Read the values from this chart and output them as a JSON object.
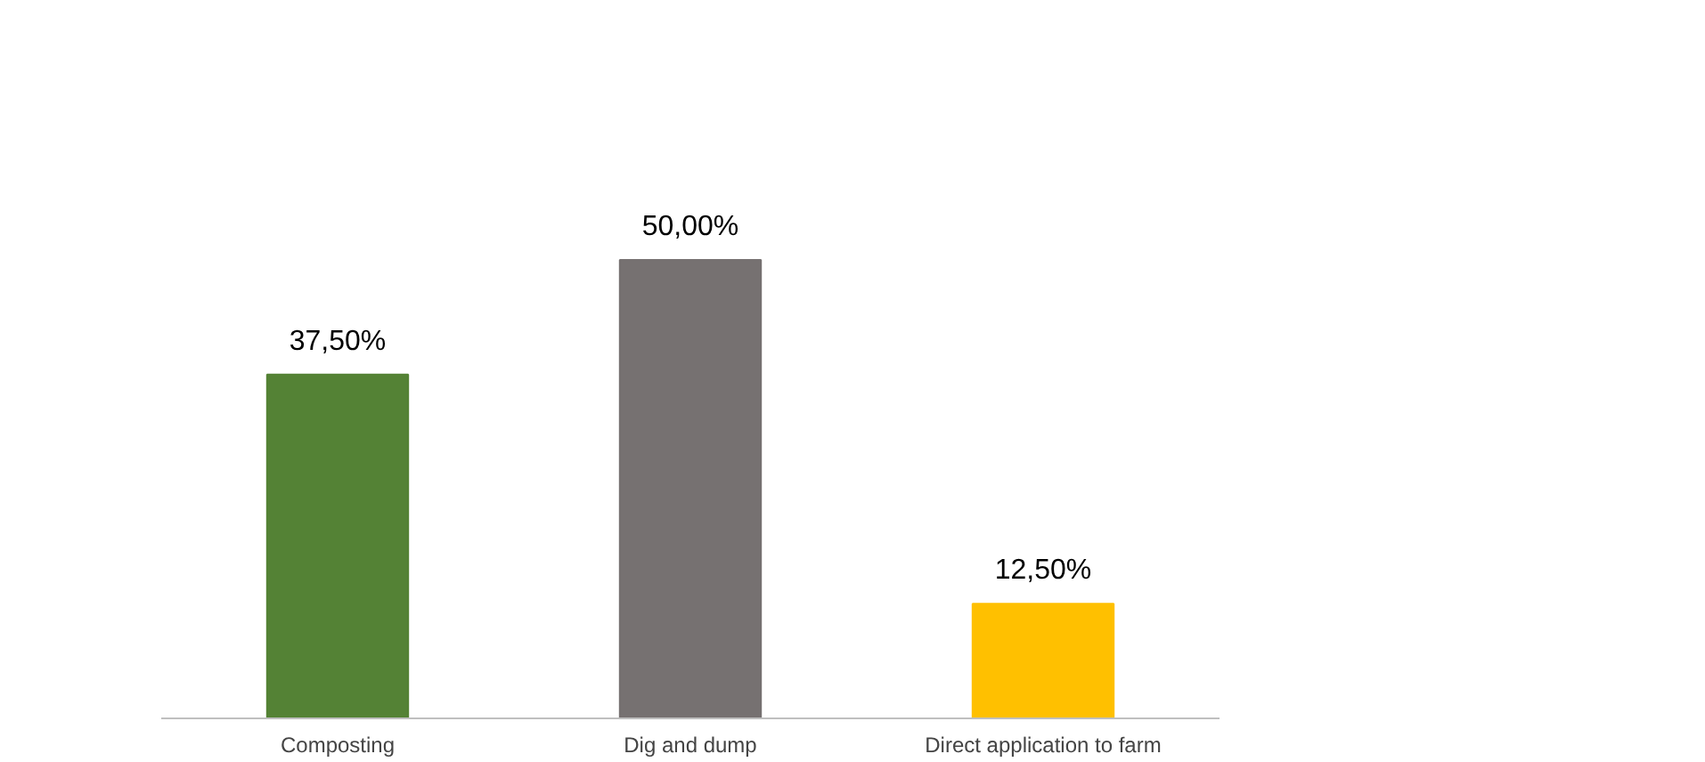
{
  "chart_data": {
    "type": "bar",
    "categories": [
      "Composting",
      "Dig and dump",
      "Direct application to farm"
    ],
    "values": [
      37.5,
      50,
      12.5
    ],
    "colors": [
      "#548235",
      "#767171",
      "#ffc000"
    ],
    "value_labels": [
      "37,50%",
      "50,00%",
      "12,50%"
    ]
  }
}
